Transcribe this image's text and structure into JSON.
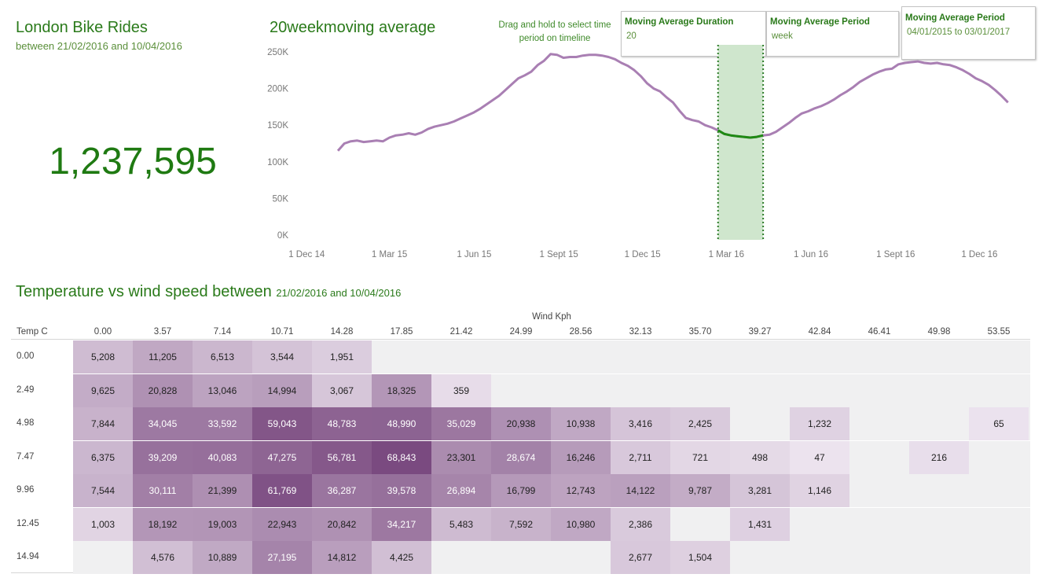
{
  "header": {
    "title": "London Bike Rides",
    "subtitle": "between 21/02/2016 and 10/04/2016",
    "kpi": "1,237,595"
  },
  "line_panel": {
    "title": "20weekmoving average",
    "hint": "Drag and hold to select time period on timeline"
  },
  "params": [
    {
      "label": "Moving Average Duration",
      "value": "20"
    },
    {
      "label": "Moving Average Period",
      "value": "week"
    },
    {
      "label": "Moving Average Period",
      "value": "04/01/2015 to 03/01/2017"
    }
  ],
  "colors": {
    "accent_green": "#2a7a1a",
    "line": "#a97fb3",
    "highlight_line": "#1f8a14",
    "selection_fill": "#cfe6cd",
    "heat_low": "#efe7f1",
    "heat_high": "#7a4a80"
  },
  "chart_data": [
    {
      "type": "line",
      "title": "20weekmoving average",
      "x_tick_labels": [
        "1 Dec 14",
        "1 Mar 15",
        "1 Jun 15",
        "1 Sept 15",
        "1 Dec 15",
        "1 Mar 16",
        "1 Jun 16",
        "1 Sept 16",
        "1 Dec 16"
      ],
      "y_tick_labels": [
        "0K",
        "50K",
        "100K",
        "150K",
        "200K",
        "250K"
      ],
      "ylim": [
        0,
        250000
      ],
      "x_range": [
        "2014-11-18",
        "2017-01-03"
      ],
      "selection": {
        "start": "2016-02-21",
        "end": "2016-04-10"
      },
      "grid": false,
      "series": [
        {
          "x": [
            "2015-01-04",
            "2015-01-11",
            "2015-01-18",
            "2015-01-25",
            "2015-02-01",
            "2015-02-08",
            "2015-02-15",
            "2015-02-22",
            "2015-03-01",
            "2015-03-08",
            "2015-03-15",
            "2015-03-22",
            "2015-03-29",
            "2015-04-05",
            "2015-04-12",
            "2015-04-19",
            "2015-04-26",
            "2015-05-03",
            "2015-05-10",
            "2015-05-17",
            "2015-05-24",
            "2015-05-31",
            "2015-06-07",
            "2015-06-14",
            "2015-06-21",
            "2015-06-28",
            "2015-07-05",
            "2015-07-12",
            "2015-07-19",
            "2015-07-26",
            "2015-08-02",
            "2015-08-09",
            "2015-08-16",
            "2015-08-23",
            "2015-08-30",
            "2015-09-06",
            "2015-09-13",
            "2015-09-20",
            "2015-09-27",
            "2015-10-04",
            "2015-10-11",
            "2015-10-18",
            "2015-10-25",
            "2015-11-01",
            "2015-11-08",
            "2015-11-15",
            "2015-11-22",
            "2015-11-29",
            "2015-12-06",
            "2015-12-13",
            "2015-12-20",
            "2015-12-27",
            "2016-01-03",
            "2016-01-10",
            "2016-01-17",
            "2016-01-24",
            "2016-01-31",
            "2016-02-07",
            "2016-02-14",
            "2016-02-21",
            "2016-02-28",
            "2016-03-06",
            "2016-03-13",
            "2016-03-20",
            "2016-03-27",
            "2016-04-03",
            "2016-04-10",
            "2016-04-17",
            "2016-04-24",
            "2016-05-01",
            "2016-05-08",
            "2016-05-15",
            "2016-05-22",
            "2016-05-29",
            "2016-06-05",
            "2016-06-12",
            "2016-06-19",
            "2016-06-26",
            "2016-07-03",
            "2016-07-10",
            "2016-07-17",
            "2016-07-24",
            "2016-07-31",
            "2016-08-07",
            "2016-08-14",
            "2016-08-21",
            "2016-08-28",
            "2016-09-04",
            "2016-09-11",
            "2016-09-18",
            "2016-09-25",
            "2016-10-02",
            "2016-10-09",
            "2016-10-16",
            "2016-10-23",
            "2016-10-30",
            "2016-11-06",
            "2016-11-13",
            "2016-11-20",
            "2016-11-27",
            "2016-12-04",
            "2016-12-11",
            "2016-12-18",
            "2016-12-25",
            "2017-01-01"
          ],
          "y": [
            115000,
            125000,
            128000,
            129000,
            127000,
            128000,
            129000,
            128000,
            133000,
            136000,
            137000,
            139000,
            137000,
            140000,
            145000,
            148000,
            150000,
            152000,
            155000,
            159000,
            163000,
            167000,
            172000,
            178000,
            184000,
            190000,
            198000,
            206000,
            214000,
            218000,
            223000,
            232000,
            238000,
            247000,
            246000,
            242000,
            243000,
            243000,
            245000,
            246000,
            246000,
            245000,
            243000,
            240000,
            235000,
            231000,
            225000,
            217000,
            207000,
            200000,
            196000,
            188000,
            181000,
            170000,
            160000,
            157000,
            155000,
            150000,
            147000,
            143000,
            138000,
            136000,
            135000,
            134000,
            133000,
            134000,
            136000,
            137000,
            141000,
            147000,
            153000,
            160000,
            166000,
            169000,
            173000,
            176000,
            180000,
            185000,
            191000,
            196000,
            202000,
            209000,
            214000,
            219000,
            223000,
            226000,
            227000,
            233000,
            235000,
            236000,
            237000,
            235000,
            234000,
            235000,
            233000,
            232000,
            229000,
            225000,
            220000,
            214000,
            210000,
            205000,
            198000,
            190000,
            181000
          ]
        }
      ]
    },
    {
      "type": "heatmap",
      "title": "Temperature vs wind speed between 21/02/2016 and 10/04/2016",
      "xlabel": "Wind Kph",
      "ylabel": "Temp C",
      "columns": [
        "0.00",
        "3.57",
        "7.14",
        "10.71",
        "14.28",
        "17.85",
        "21.42",
        "24.99",
        "28.56",
        "32.13",
        "35.70",
        "39.27",
        "42.84",
        "46.41",
        "49.98",
        "53.55"
      ],
      "rows": [
        "0.00",
        "2.49",
        "4.98",
        "7.47",
        "9.96",
        "12.45",
        "14.94"
      ],
      "values": [
        [
          5208,
          11205,
          6513,
          3544,
          1951,
          null,
          null,
          null,
          null,
          null,
          null,
          null,
          null,
          null,
          null,
          null
        ],
        [
          9625,
          20828,
          13046,
          14994,
          3067,
          18325,
          359,
          null,
          null,
          null,
          null,
          null,
          null,
          null,
          null,
          null
        ],
        [
          7844,
          34045,
          33592,
          59043,
          48783,
          48990,
          35029,
          20938,
          10938,
          3416,
          2425,
          null,
          1232,
          null,
          null,
          65
        ],
        [
          6375,
          39209,
          40083,
          47275,
          56781,
          68843,
          23301,
          28674,
          16246,
          2711,
          721,
          498,
          47,
          null,
          216,
          null
        ],
        [
          7544,
          30111,
          21399,
          61769,
          36287,
          39578,
          26894,
          16799,
          12743,
          14122,
          9787,
          3281,
          1146,
          null,
          null,
          null
        ],
        [
          1003,
          18192,
          19003,
          22943,
          20842,
          34217,
          5483,
          7592,
          10980,
          2386,
          null,
          1431,
          null,
          null,
          null,
          null
        ],
        [
          null,
          4576,
          10889,
          27195,
          14812,
          4425,
          null,
          null,
          null,
          2677,
          1504,
          null,
          null,
          null,
          null,
          null
        ]
      ],
      "value_labels": [
        [
          "5,208",
          "11,205",
          "6,513",
          "3,544",
          "1,951",
          "",
          "",
          "",
          "",
          "",
          "",
          "",
          "",
          "",
          "",
          ""
        ],
        [
          "9,625",
          "20,828",
          "13,046",
          "14,994",
          "3,067",
          "18,325",
          "359",
          "",
          "",
          "",
          "",
          "",
          "",
          "",
          "",
          ""
        ],
        [
          "7,844",
          "34,045",
          "33,592",
          "59,043",
          "48,783",
          "48,990",
          "35,029",
          "20,938",
          "10,938",
          "3,416",
          "2,425",
          "",
          "1,232",
          "",
          "",
          "65"
        ],
        [
          "6,375",
          "39,209",
          "40,083",
          "47,275",
          "56,781",
          "68,843",
          "23,301",
          "28,674",
          "16,246",
          "2,711",
          "721",
          "498",
          "47",
          "",
          "216",
          ""
        ],
        [
          "7,544",
          "30,111",
          "21,399",
          "61,769",
          "36,287",
          "39,578",
          "26,894",
          "16,799",
          "12,743",
          "14,122",
          "9,787",
          "3,281",
          "1,146",
          "",
          "",
          ""
        ],
        [
          "1,003",
          "18,192",
          "19,003",
          "22,943",
          "20,842",
          "34,217",
          "5,483",
          "7,592",
          "10,980",
          "2,386",
          "",
          "1,431",
          "",
          "",
          "",
          ""
        ],
        [
          "",
          "4,576",
          "10,889",
          "27,195",
          "14,812",
          "4,425",
          "",
          "",
          "",
          "2,677",
          "1,504",
          "",
          "",
          "",
          "",
          ""
        ]
      ]
    }
  ]
}
